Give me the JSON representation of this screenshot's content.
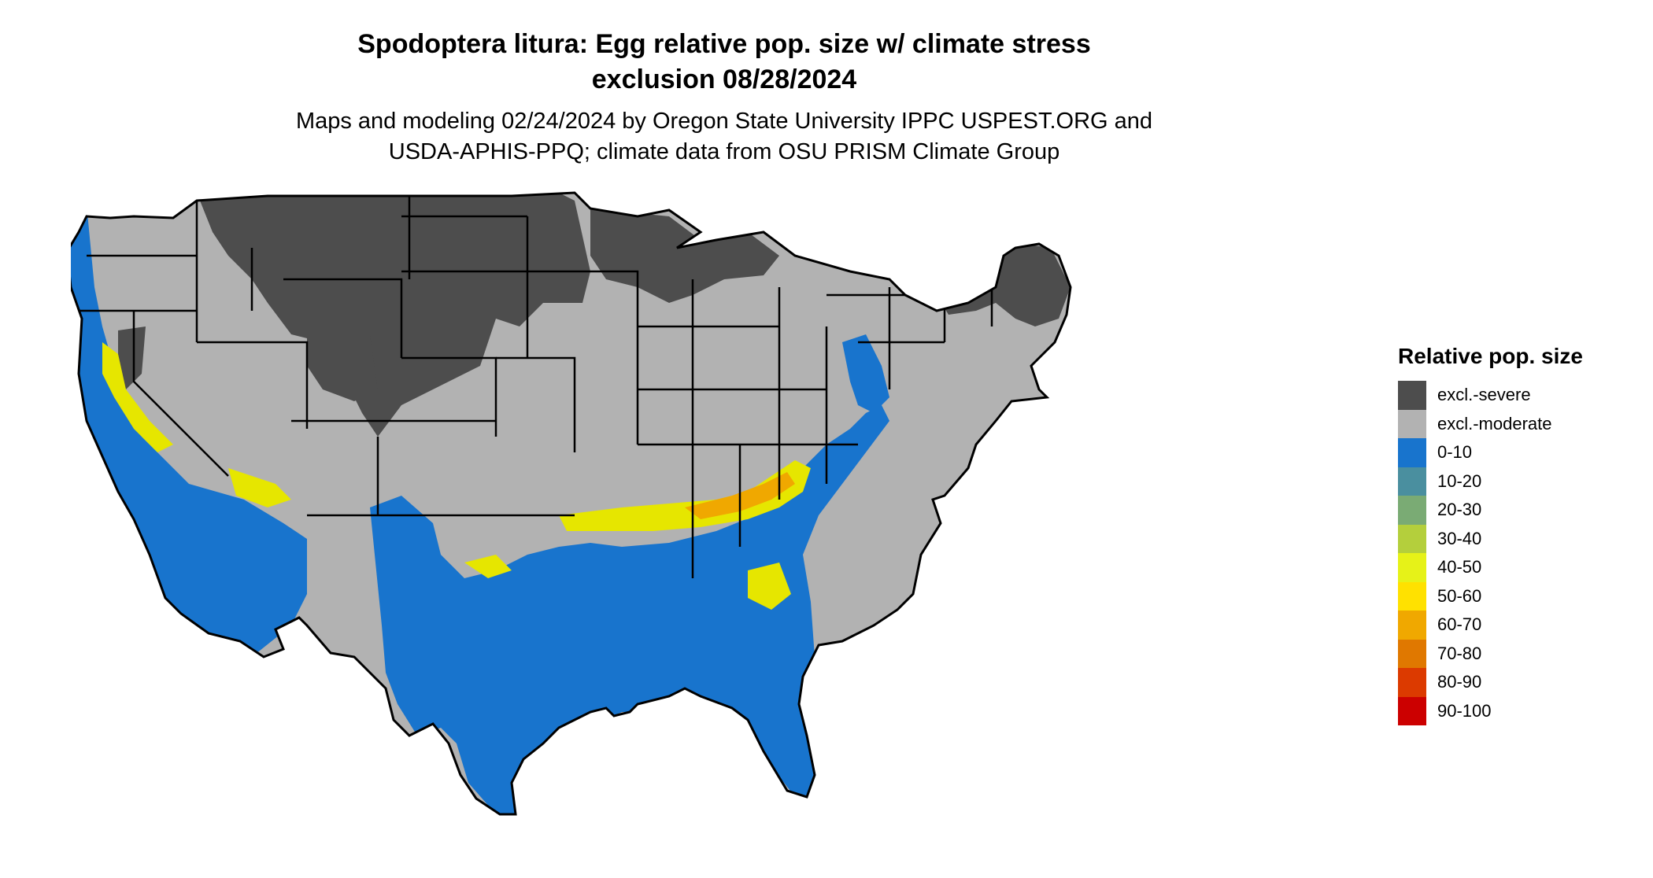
{
  "title": {
    "line1": "Spodoptera litura: Egg relative pop. size w/ climate stress",
    "line2": "exclusion 08/28/2024"
  },
  "subtitle": {
    "line1": "Maps and modeling 02/24/2024 by Oregon State University IPPC USPEST.ORG and",
    "line2": "USDA-APHIS-PPQ; climate data from OSU PRISM Climate Group"
  },
  "map": {
    "region": "Contiguous United States",
    "colors": {
      "excl_severe": "#4d4d4d",
      "excl_moderate": "#b2b2b2",
      "low": "#1874cd",
      "mid": "#e6e600",
      "high": "#ee3b00",
      "border": "#000000"
    }
  },
  "legend": {
    "title": "Relative pop. size",
    "items": [
      {
        "label": "excl.-severe",
        "color": "#4d4d4d"
      },
      {
        "label": "excl.-moderate",
        "color": "#b2b2b2"
      },
      {
        "label": "0-10",
        "color": "#1874cd"
      },
      {
        "label": "10-20",
        "color": "#4a8f9f"
      },
      {
        "label": "20-30",
        "color": "#7aab74"
      },
      {
        "label": "30-40",
        "color": "#b4cf3c"
      },
      {
        "label": "40-50",
        "color": "#e6f218"
      },
      {
        "label": "50-60",
        "color": "#ffe100"
      },
      {
        "label": "60-70",
        "color": "#f0a800"
      },
      {
        "label": "70-80",
        "color": "#e07800"
      },
      {
        "label": "80-90",
        "color": "#dc3a00"
      },
      {
        "label": "90-100",
        "color": "#cc0000"
      }
    ]
  }
}
